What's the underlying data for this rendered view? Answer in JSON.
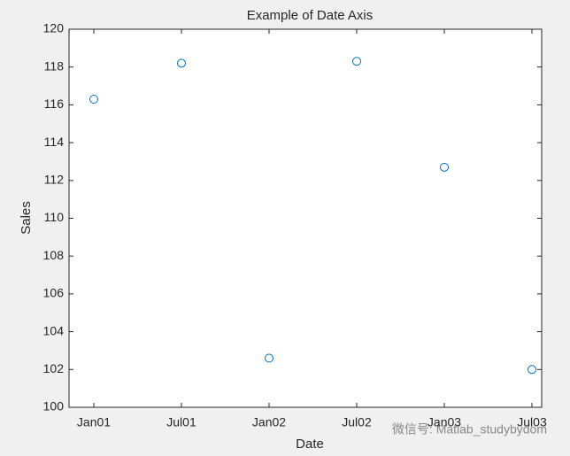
{
  "chart_data": {
    "type": "scatter",
    "title": "Example of Date Axis",
    "x_label": "Date",
    "y_label": "Sales",
    "categories": [
      "Jan01",
      "Jul01",
      "Jan02",
      "Jul02",
      "Jan03",
      "Jul03"
    ],
    "values": [
      116.3,
      118.2,
      102.6,
      118.3,
      112.7,
      102.0
    ],
    "color": "#0072bd",
    "ylim": [
      100,
      120
    ],
    "yticks": [
      100,
      102,
      104,
      106,
      108,
      110,
      112,
      114,
      116,
      118,
      120
    ],
    "grid": false
  },
  "watermark": "微信号: Matlab_studybydom"
}
